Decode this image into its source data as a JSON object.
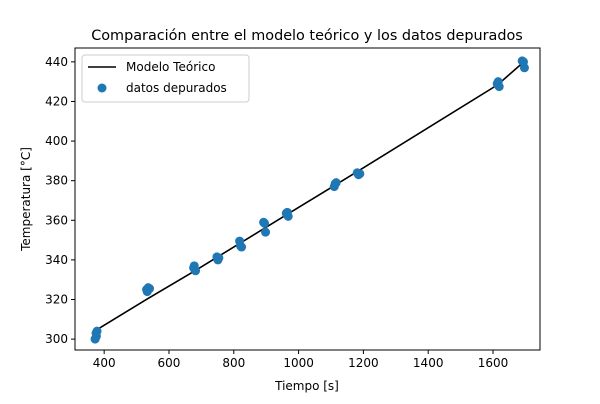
{
  "chart_data": {
    "type": "scatter",
    "title": "Comparación entre el modelo teórico y los datos depurados",
    "xlabel": "Tiempo [s]",
    "ylabel": "Temperatura [°C]",
    "xlim": [
      310,
      1745
    ],
    "ylim": [
      294.5,
      447
    ],
    "xticks": [
      400,
      600,
      800,
      1000,
      1200,
      1400,
      1600
    ],
    "yticks": [
      300,
      320,
      340,
      360,
      380,
      400,
      420,
      440
    ],
    "grid": false,
    "legend_position": "top-left",
    "colors": {
      "model": "#000000",
      "data": "#1f77b4"
    },
    "series": [
      {
        "name": "Modelo Teórico",
        "kind": "line",
        "x": [
          375,
          535,
          680,
          750,
          820,
          895,
          965,
          1110,
          1185,
          1615,
          1695
        ],
        "y": [
          304.5,
          320.5,
          334.5,
          341.5,
          348.5,
          356.0,
          363.0,
          377.5,
          385.0,
          428.5,
          440.0
        ]
      },
      {
        "name": "datos depurados",
        "kind": "scatter",
        "x": [
          375,
          378,
          372,
          376,
          531,
          536,
          540,
          533,
          678,
          680,
          676,
          682,
          748,
          751,
          754,
          818,
          821,
          824,
          892,
          895,
          898,
          962,
          965,
          968,
          1110,
          1113,
          1116,
          1181,
          1185,
          1189,
          1613,
          1616,
          1619,
          1690,
          1694,
          1697
        ],
        "y": [
          303,
          304,
          300,
          301.5,
          325,
          326,
          325.5,
          324,
          337,
          335,
          336,
          334.5,
          341.5,
          340,
          341,
          349.5,
          347,
          346.5,
          359,
          358.5,
          354,
          363.5,
          364,
          362,
          377,
          378.5,
          379,
          384,
          383,
          383.5,
          429,
          430,
          427.5,
          440.5,
          440,
          437
        ]
      }
    ]
  }
}
